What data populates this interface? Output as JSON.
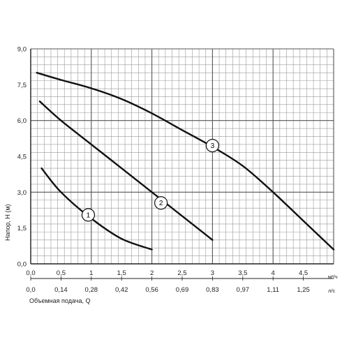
{
  "chart_data": {
    "type": "line",
    "ylabel": "Напор, H (м)",
    "xlabel": "Объемная подача, Q",
    "x_unit": "м³/ч",
    "x2_unit": "л/с",
    "xlim": [
      0,
      5
    ],
    "ylim": [
      0,
      9
    ],
    "grid": true,
    "y_ticks": [
      "0,0",
      "1,5",
      "3,0",
      "4,5",
      "6,0",
      "7,5",
      "9,0"
    ],
    "x_ticks": [
      "0,0",
      "0,5",
      "1",
      "1,5",
      "2",
      "2,5",
      "3",
      "3,5",
      "4",
      "4,5"
    ],
    "x2_ticks": [
      "0,0",
      "0,14",
      "0,28",
      "0,42",
      "0,56",
      "0,69",
      "0,83",
      "0,97",
      "1,11",
      "1,25"
    ],
    "series": [
      {
        "name": "1",
        "x": [
          0.18,
          0.5,
          1.0,
          1.5,
          2.0
        ],
        "y": [
          4.0,
          3.0,
          1.9,
          1.05,
          0.6
        ]
      },
      {
        "name": "2",
        "x": [
          0.15,
          0.5,
          1.0,
          1.5,
          2.0,
          2.5,
          3.0
        ],
        "y": [
          6.8,
          6.0,
          5.0,
          4.0,
          3.0,
          2.0,
          1.0
        ]
      },
      {
        "name": "3",
        "x": [
          0.1,
          0.5,
          1.0,
          1.5,
          2.0,
          2.5,
          3.0,
          3.5,
          4.0,
          4.5,
          5.0
        ],
        "y": [
          8.0,
          7.7,
          7.35,
          6.9,
          6.3,
          5.6,
          4.9,
          4.1,
          3.0,
          1.8,
          0.6
        ]
      }
    ],
    "series_label_at": [
      {
        "text": "1",
        "x": 0.95,
        "y": 2.05
      },
      {
        "text": "2",
        "x": 2.15,
        "y": 2.55
      },
      {
        "text": "3",
        "x": 3.0,
        "y": 4.95
      }
    ]
  }
}
